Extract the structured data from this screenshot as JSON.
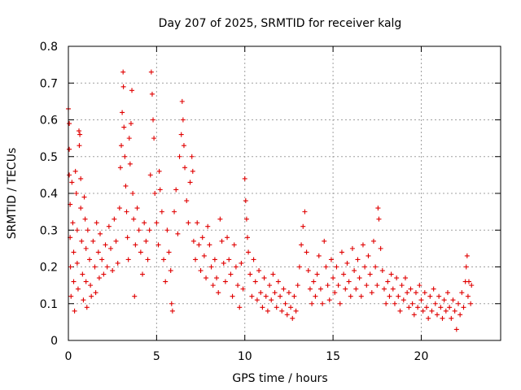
{
  "chart_data": {
    "type": "scatter",
    "title": "Day 207 of 2025, SRMTID for receiver kalg",
    "xlabel": "GPS time / hours",
    "ylabel": "SRMTID / TECUs",
    "xlim": [
      0,
      24.5
    ],
    "ylim": [
      0,
      0.8
    ],
    "xticks": [
      0,
      5,
      10,
      15,
      20
    ],
    "xtick_labels": [
      "0",
      "5",
      "10",
      "15",
      "20"
    ],
    "yticks": [
      0,
      0.1,
      0.2,
      0.3,
      0.4,
      0.5,
      0.6,
      0.7,
      0.8
    ],
    "ytick_labels": [
      "0",
      "0.1",
      "0.2",
      "0.3",
      "0.4",
      "0.5",
      "0.6",
      "0.7",
      "0.8"
    ],
    "grid": true,
    "marker": "+",
    "color": "#e00000",
    "series": [
      {
        "name": "SRMTID",
        "points": [
          [
            0.0,
            0.63
          ],
          [
            0.05,
            0.59
          ],
          [
            0.05,
            0.52
          ],
          [
            0.05,
            0.45
          ],
          [
            0.1,
            0.37
          ],
          [
            0.1,
            0.28
          ],
          [
            0.12,
            0.2
          ],
          [
            0.15,
            0.12
          ],
          [
            0.2,
            0.43
          ],
          [
            0.25,
            0.32
          ],
          [
            0.3,
            0.24
          ],
          [
            0.3,
            0.16
          ],
          [
            0.35,
            0.08
          ],
          [
            0.4,
            0.46
          ],
          [
            0.45,
            0.4
          ],
          [
            0.5,
            0.3
          ],
          [
            0.5,
            0.21
          ],
          [
            0.55,
            0.14
          ],
          [
            0.6,
            0.57
          ],
          [
            0.62,
            0.53
          ],
          [
            0.65,
            0.56
          ],
          [
            0.7,
            0.44
          ],
          [
            0.7,
            0.36
          ],
          [
            0.75,
            0.27
          ],
          [
            0.8,
            0.18
          ],
          [
            0.85,
            0.11
          ],
          [
            0.9,
            0.39
          ],
          [
            0.95,
            0.33
          ],
          [
            1.0,
            0.25
          ],
          [
            1.0,
            0.16
          ],
          [
            1.05,
            0.09
          ],
          [
            1.1,
            0.3
          ],
          [
            1.2,
            0.22
          ],
          [
            1.25,
            0.15
          ],
          [
            1.3,
            0.12
          ],
          [
            1.4,
            0.27
          ],
          [
            1.5,
            0.2
          ],
          [
            1.55,
            0.13
          ],
          [
            1.6,
            0.32
          ],
          [
            1.7,
            0.24
          ],
          [
            1.75,
            0.17
          ],
          [
            1.8,
            0.29
          ],
          [
            1.9,
            0.22
          ],
          [
            2.0,
            0.18
          ],
          [
            2.1,
            0.26
          ],
          [
            2.2,
            0.2
          ],
          [
            2.3,
            0.31
          ],
          [
            2.4,
            0.25
          ],
          [
            2.5,
            0.19
          ],
          [
            2.6,
            0.33
          ],
          [
            2.7,
            0.27
          ],
          [
            2.8,
            0.21
          ],
          [
            2.9,
            0.36
          ],
          [
            2.95,
            0.47
          ],
          [
            3.0,
            0.53
          ],
          [
            3.05,
            0.62
          ],
          [
            3.1,
            0.73
          ],
          [
            3.12,
            0.69
          ],
          [
            3.15,
            0.58
          ],
          [
            3.2,
            0.5
          ],
          [
            3.25,
            0.42
          ],
          [
            3.3,
            0.35
          ],
          [
            3.35,
            0.28
          ],
          [
            3.4,
            0.22
          ],
          [
            3.45,
            0.55
          ],
          [
            3.5,
            0.48
          ],
          [
            3.55,
            0.59
          ],
          [
            3.6,
            0.68
          ],
          [
            3.65,
            0.4
          ],
          [
            3.7,
            0.33
          ],
          [
            3.75,
            0.12
          ],
          [
            3.8,
            0.26
          ],
          [
            3.9,
            0.36
          ],
          [
            4.0,
            0.3
          ],
          [
            4.1,
            0.24
          ],
          [
            4.2,
            0.18
          ],
          [
            4.3,
            0.32
          ],
          [
            4.4,
            0.27
          ],
          [
            4.5,
            0.22
          ],
          [
            4.6,
            0.3
          ],
          [
            4.65,
            0.45
          ],
          [
            4.7,
            0.73
          ],
          [
            4.75,
            0.67
          ],
          [
            4.8,
            0.6
          ],
          [
            4.85,
            0.55
          ],
          [
            4.9,
            0.4
          ],
          [
            5.0,
            0.32
          ],
          [
            5.1,
            0.26
          ],
          [
            5.15,
            0.46
          ],
          [
            5.2,
            0.41
          ],
          [
            5.3,
            0.35
          ],
          [
            5.4,
            0.22
          ],
          [
            5.5,
            0.16
          ],
          [
            5.6,
            0.3
          ],
          [
            5.7,
            0.24
          ],
          [
            5.8,
            0.19
          ],
          [
            5.85,
            0.1
          ],
          [
            5.9,
            0.08
          ],
          [
            6.0,
            0.35
          ],
          [
            6.1,
            0.41
          ],
          [
            6.2,
            0.29
          ],
          [
            6.3,
            0.5
          ],
          [
            6.4,
            0.56
          ],
          [
            6.45,
            0.65
          ],
          [
            6.5,
            0.6
          ],
          [
            6.55,
            0.53
          ],
          [
            6.6,
            0.47
          ],
          [
            6.7,
            0.38
          ],
          [
            6.8,
            0.32
          ],
          [
            6.9,
            0.43
          ],
          [
            7.0,
            0.5
          ],
          [
            7.05,
            0.46
          ],
          [
            7.1,
            0.27
          ],
          [
            7.2,
            0.22
          ],
          [
            7.3,
            0.32
          ],
          [
            7.4,
            0.26
          ],
          [
            7.5,
            0.19
          ],
          [
            7.6,
            0.28
          ],
          [
            7.7,
            0.23
          ],
          [
            7.8,
            0.17
          ],
          [
            7.9,
            0.31
          ],
          [
            8.0,
            0.26
          ],
          [
            8.1,
            0.2
          ],
          [
            8.2,
            0.15
          ],
          [
            8.3,
            0.22
          ],
          [
            8.4,
            0.17
          ],
          [
            8.5,
            0.13
          ],
          [
            8.6,
            0.33
          ],
          [
            8.7,
            0.27
          ],
          [
            8.8,
            0.21
          ],
          [
            8.9,
            0.16
          ],
          [
            9.0,
            0.28
          ],
          [
            9.1,
            0.22
          ],
          [
            9.2,
            0.18
          ],
          [
            9.3,
            0.12
          ],
          [
            9.4,
            0.26
          ],
          [
            9.5,
            0.2
          ],
          [
            9.6,
            0.15
          ],
          [
            9.7,
            0.09
          ],
          [
            9.8,
            0.21
          ],
          [
            9.9,
            0.14
          ],
          [
            10.0,
            0.44
          ],
          [
            10.05,
            0.38
          ],
          [
            10.1,
            0.33
          ],
          [
            10.15,
            0.28
          ],
          [
            10.2,
            0.24
          ],
          [
            10.3,
            0.18
          ],
          [
            10.4,
            0.12
          ],
          [
            10.5,
            0.22
          ],
          [
            10.6,
            0.16
          ],
          [
            10.7,
            0.11
          ],
          [
            10.8,
            0.19
          ],
          [
            10.9,
            0.13
          ],
          [
            11.0,
            0.09
          ],
          [
            11.1,
            0.17
          ],
          [
            11.2,
            0.12
          ],
          [
            11.3,
            0.08
          ],
          [
            11.4,
            0.15
          ],
          [
            11.5,
            0.11
          ],
          [
            11.6,
            0.18
          ],
          [
            11.7,
            0.13
          ],
          [
            11.8,
            0.09
          ],
          [
            11.9,
            0.16
          ],
          [
            12.0,
            0.12
          ],
          [
            12.1,
            0.08
          ],
          [
            12.2,
            0.14
          ],
          [
            12.3,
            0.1
          ],
          [
            12.4,
            0.07
          ],
          [
            12.5,
            0.13
          ],
          [
            12.6,
            0.09
          ],
          [
            12.7,
            0.06
          ],
          [
            12.8,
            0.12
          ],
          [
            12.9,
            0.08
          ],
          [
            13.0,
            0.15
          ],
          [
            13.1,
            0.2
          ],
          [
            13.2,
            0.26
          ],
          [
            13.3,
            0.31
          ],
          [
            13.4,
            0.35
          ],
          [
            13.5,
            0.24
          ],
          [
            13.6,
            0.19
          ],
          [
            13.7,
            0.14
          ],
          [
            13.8,
            0.1
          ],
          [
            13.9,
            0.16
          ],
          [
            14.0,
            0.12
          ],
          [
            14.1,
            0.18
          ],
          [
            14.2,
            0.23
          ],
          [
            14.3,
            0.14
          ],
          [
            14.4,
            0.1
          ],
          [
            14.5,
            0.27
          ],
          [
            14.6,
            0.2
          ],
          [
            14.7,
            0.15
          ],
          [
            14.8,
            0.11
          ],
          [
            14.9,
            0.22
          ],
          [
            15.0,
            0.17
          ],
          [
            15.1,
            0.13
          ],
          [
            15.2,
            0.2
          ],
          [
            15.3,
            0.15
          ],
          [
            15.4,
            0.1
          ],
          [
            15.5,
            0.24
          ],
          [
            15.6,
            0.18
          ],
          [
            15.7,
            0.14
          ],
          [
            15.8,
            0.21
          ],
          [
            15.9,
            0.16
          ],
          [
            16.0,
            0.12
          ],
          [
            16.1,
            0.25
          ],
          [
            16.2,
            0.19
          ],
          [
            16.3,
            0.14
          ],
          [
            16.4,
            0.22
          ],
          [
            16.5,
            0.17
          ],
          [
            16.6,
            0.12
          ],
          [
            16.7,
            0.26
          ],
          [
            16.8,
            0.2
          ],
          [
            16.9,
            0.15
          ],
          [
            17.0,
            0.23
          ],
          [
            17.1,
            0.18
          ],
          [
            17.2,
            0.13
          ],
          [
            17.3,
            0.27
          ],
          [
            17.4,
            0.2
          ],
          [
            17.5,
            0.15
          ],
          [
            17.55,
            0.36
          ],
          [
            17.6,
            0.33
          ],
          [
            17.7,
            0.25
          ],
          [
            17.8,
            0.19
          ],
          [
            17.9,
            0.14
          ],
          [
            18.0,
            0.1
          ],
          [
            18.1,
            0.16
          ],
          [
            18.2,
            0.12
          ],
          [
            18.3,
            0.18
          ],
          [
            18.4,
            0.14
          ],
          [
            18.5,
            0.1
          ],
          [
            18.6,
            0.17
          ],
          [
            18.7,
            0.12
          ],
          [
            18.8,
            0.08
          ],
          [
            18.9,
            0.15
          ],
          [
            19.0,
            0.11
          ],
          [
            19.1,
            0.17
          ],
          [
            19.2,
            0.13
          ],
          [
            19.3,
            0.09
          ],
          [
            19.4,
            0.14
          ],
          [
            19.5,
            0.1
          ],
          [
            19.6,
            0.07
          ],
          [
            19.7,
            0.13
          ],
          [
            19.8,
            0.09
          ],
          [
            19.9,
            0.15
          ],
          [
            20.0,
            0.11
          ],
          [
            20.1,
            0.08
          ],
          [
            20.2,
            0.13
          ],
          [
            20.3,
            0.09
          ],
          [
            20.4,
            0.06
          ],
          [
            20.5,
            0.12
          ],
          [
            20.6,
            0.08
          ],
          [
            20.7,
            0.14
          ],
          [
            20.8,
            0.1
          ],
          [
            20.9,
            0.07
          ],
          [
            21.0,
            0.12
          ],
          [
            21.1,
            0.09
          ],
          [
            21.2,
            0.06
          ],
          [
            21.3,
            0.11
          ],
          [
            21.4,
            0.08
          ],
          [
            21.5,
            0.13
          ],
          [
            21.6,
            0.09
          ],
          [
            21.7,
            0.06
          ],
          [
            21.8,
            0.11
          ],
          [
            21.9,
            0.08
          ],
          [
            22.0,
            0.03
          ],
          [
            22.1,
            0.1
          ],
          [
            22.2,
            0.07
          ],
          [
            22.3,
            0.13
          ],
          [
            22.4,
            0.09
          ],
          [
            22.5,
            0.16
          ],
          [
            22.55,
            0.2
          ],
          [
            22.6,
            0.23
          ],
          [
            22.65,
            0.12
          ],
          [
            22.7,
            0.16
          ],
          [
            22.8,
            0.1
          ],
          [
            22.85,
            0.15
          ]
        ]
      }
    ]
  }
}
